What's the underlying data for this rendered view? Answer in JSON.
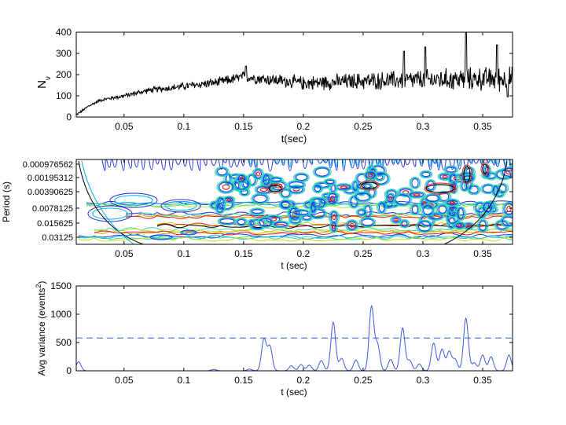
{
  "chart_data": [
    {
      "type": "line",
      "xlabel": "t(sec)",
      "ylabel": "N",
      "ylabel_subscript": "ν",
      "xlim": [
        0.01,
        0.375
      ],
      "ylim": [
        0,
        400
      ],
      "xticks": [
        0.05,
        0.1,
        0.15,
        0.2,
        0.25,
        0.3,
        0.35
      ],
      "xtick_labels": [
        "0.05",
        "0.1",
        "0.15",
        "0.2",
        "0.25",
        "0.3",
        "0.35"
      ],
      "yticks": [
        0,
        100,
        200,
        300,
        400
      ],
      "ytick_labels": [
        "0",
        "100",
        "200",
        "300",
        "400"
      ],
      "line_color": "#000000",
      "series": [
        {
          "trend_x": [
            0.01,
            0.02,
            0.03,
            0.05,
            0.07,
            0.1,
            0.13,
            0.15,
            0.2,
            0.25,
            0.3,
            0.35,
            0.375
          ],
          "trend_y": [
            10,
            50,
            80,
            100,
            125,
            145,
            165,
            190,
            160,
            170,
            175,
            180,
            180
          ],
          "noise_amp_start": 6,
          "noise_amp_end": 70,
          "peaks": [
            [
              0.152,
              240
            ],
            [
              0.284,
              310
            ],
            [
              0.302,
              330
            ],
            [
              0.336,
              400
            ],
            [
              0.362,
              340
            ],
            [
              0.371,
              95
            ]
          ]
        }
      ]
    },
    {
      "type": "heatmap",
      "subtype": "wavelet power contours",
      "xlabel": "t (sec)",
      "ylabel": "Period (s)",
      "xlim": [
        0.01,
        0.375
      ],
      "ylog2": true,
      "yticks": [
        0.000976562,
        0.00195312,
        0.00390625,
        0.0078125,
        0.015625,
        0.03125
      ],
      "ytick_labels": [
        "0.000976562",
        "0.00195312",
        "0.00390625",
        "0.0078125",
        "0.015625",
        "0.03125"
      ],
      "xticks": [
        0.05,
        0.1,
        0.15,
        0.2,
        0.25,
        0.3,
        0.35
      ],
      "xtick_labels": [
        "0.05",
        "0.1",
        "0.15",
        "0.2",
        "0.25",
        "0.3",
        "0.35"
      ],
      "contour_colors": [
        "#2030e0",
        "#00b0f0",
        "#40d8a0",
        "#c0e020",
        "#f0a000",
        "#e02020",
        "#000000"
      ],
      "cone_of_influence": true
    },
    {
      "type": "line",
      "xlabel": "t (sec)",
      "ylabel": "Avg variance (events",
      "ylabel_sup": "2",
      "ylabel_end": ")",
      "xlim": [
        0.01,
        0.375
      ],
      "ylim": [
        0,
        1500
      ],
      "xticks": [
        0.05,
        0.1,
        0.15,
        0.2,
        0.25,
        0.3,
        0.35
      ],
      "xtick_labels": [
        "0.05",
        "0.1",
        "0.15",
        "0.2",
        "0.25",
        "0.3",
        "0.35"
      ],
      "yticks": [
        0,
        500,
        1000,
        1500
      ],
      "ytick_labels": [
        "0",
        "500",
        "1000",
        "1500"
      ],
      "line_color": "#3a5ce0",
      "threshold": 580,
      "series": [
        {
          "peaks": [
            [
              0.012,
              160
            ],
            [
              0.125,
              25
            ],
            [
              0.155,
              30
            ],
            [
              0.167,
              560
            ],
            [
              0.172,
              430
            ],
            [
              0.19,
              90
            ],
            [
              0.198,
              110
            ],
            [
              0.205,
              100
            ],
            [
              0.215,
              180
            ],
            [
              0.225,
              860
            ],
            [
              0.232,
              220
            ],
            [
              0.244,
              190
            ],
            [
              0.257,
              1130
            ],
            [
              0.262,
              460
            ],
            [
              0.273,
              200
            ],
            [
              0.283,
              760
            ],
            [
              0.289,
              180
            ],
            [
              0.297,
              120
            ],
            [
              0.309,
              490
            ],
            [
              0.316,
              380
            ],
            [
              0.322,
              340
            ],
            [
              0.327,
              200
            ],
            [
              0.336,
              930
            ],
            [
              0.343,
              140
            ],
            [
              0.35,
              280
            ],
            [
              0.357,
              250
            ],
            [
              0.372,
              280
            ]
          ]
        }
      ]
    }
  ]
}
